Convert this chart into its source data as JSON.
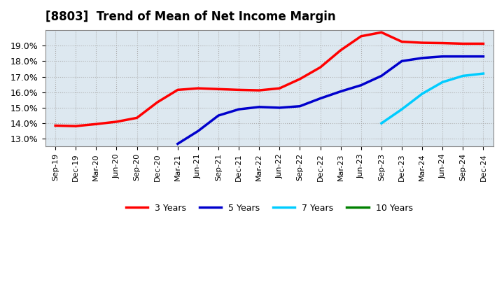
{
  "title": "[8803]  Trend of Mean of Net Income Margin",
  "ylim": [
    0.125,
    0.2
  ],
  "yticks": [
    0.13,
    0.14,
    0.15,
    0.16,
    0.17,
    0.18,
    0.19
  ],
  "background_color": "#ffffff",
  "plot_bg_color": "#dde8f0",
  "grid_color": "#aaaaaa",
  "x_labels": [
    "Sep-19",
    "Dec-19",
    "Mar-20",
    "Jun-20",
    "Sep-20",
    "Dec-20",
    "Mar-21",
    "Jun-21",
    "Sep-21",
    "Dec-21",
    "Mar-22",
    "Jun-22",
    "Sep-22",
    "Dec-22",
    "Mar-23",
    "Jun-23",
    "Sep-23",
    "Dec-23",
    "Mar-24",
    "Jun-24",
    "Sep-24",
    "Dec-24"
  ],
  "series": {
    "3 Years": {
      "color": "#ff0000",
      "data_y": [
        0.1385,
        0.1382,
        0.1395,
        0.141,
        0.1435,
        0.1535,
        0.1615,
        0.1625,
        0.162,
        0.1615,
        0.1612,
        0.1625,
        0.1685,
        0.176,
        0.187,
        0.196,
        0.1985,
        0.1925,
        0.1918,
        0.1916,
        0.1912,
        0.1912
      ]
    },
    "5 Years": {
      "color": "#0000cc",
      "data_y": [
        null,
        null,
        null,
        null,
        null,
        null,
        0.1268,
        0.135,
        0.145,
        0.149,
        0.1505,
        0.15,
        0.151,
        0.156,
        0.1605,
        0.1645,
        0.1705,
        0.18,
        0.182,
        0.183,
        0.183,
        0.183
      ]
    },
    "7 Years": {
      "color": "#00ccff",
      "data_y": [
        null,
        null,
        null,
        null,
        null,
        null,
        null,
        null,
        null,
        null,
        null,
        null,
        null,
        null,
        null,
        null,
        0.14,
        0.149,
        0.159,
        0.1665,
        0.1705,
        0.172,
        null
      ]
    },
    "10 Years": {
      "color": "#008000",
      "data_y": [
        null,
        null,
        null,
        null,
        null,
        null,
        null,
        null,
        null,
        null,
        null,
        null,
        null,
        null,
        null,
        null,
        null,
        null,
        null,
        null,
        null,
        null
      ]
    }
  },
  "legend_labels": [
    "3 Years",
    "5 Years",
    "7 Years",
    "10 Years"
  ],
  "legend_colors": [
    "#ff0000",
    "#0000cc",
    "#00ccff",
    "#008000"
  ]
}
